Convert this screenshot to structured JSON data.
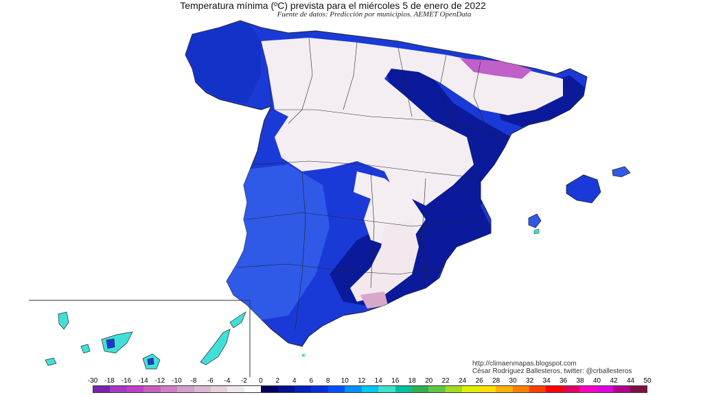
{
  "header": {
    "title": "Temperatura mínima (ºC) prevista para el miércoles 5 de enero de 2022",
    "subtitle": "Fuente de datos: Predicción por municipios. AEMET OpenData"
  },
  "credits": {
    "line1": "http://climaenmapas.blogspot.com",
    "line2": "César Rodríguez Ballesteros, twitter: @crballesteros"
  },
  "legend": {
    "labels": [
      "-30",
      "-18",
      "-16",
      "-14",
      "-12",
      "-10",
      "-8",
      "-6",
      "-4",
      "-2",
      "0",
      "2",
      "4",
      "6",
      "8",
      "10",
      "12",
      "14",
      "16",
      "18",
      "20",
      "22",
      "24",
      "26",
      "28",
      "30",
      "32",
      "34",
      "36",
      "38",
      "40",
      "42",
      "44",
      "50"
    ],
    "colors": [
      "#7b22b0",
      "#a63ac2",
      "#c040c8",
      "#c860c0",
      "#d080c0",
      "#d0a0c8",
      "#dcb8d0",
      "#e8d0dc",
      "#f0e8ee",
      "#ffffff",
      "#000060",
      "#001090",
      "#0020c0",
      "#0030e0",
      "#0050ff",
      "#0090ff",
      "#00c8f0",
      "#40e0d0",
      "#00c0a0",
      "#30b050",
      "#60c840",
      "#a0dc20",
      "#e0f000",
      "#ffe000",
      "#ffb000",
      "#ff8000",
      "#ff4000",
      "#ff0000",
      "#e00060",
      "#ff00c0",
      "#e000e0",
      "#b00090",
      "#801040"
    ]
  },
  "colors": {
    "sea": "#ffffff",
    "cold_white": "#f4eef2",
    "blue_dark": "#0a1a9a",
    "blue_mid": "#1a3ad8",
    "blue_light": "#2f5ae8",
    "canary": "#40e0d8",
    "borders": "#222222"
  }
}
